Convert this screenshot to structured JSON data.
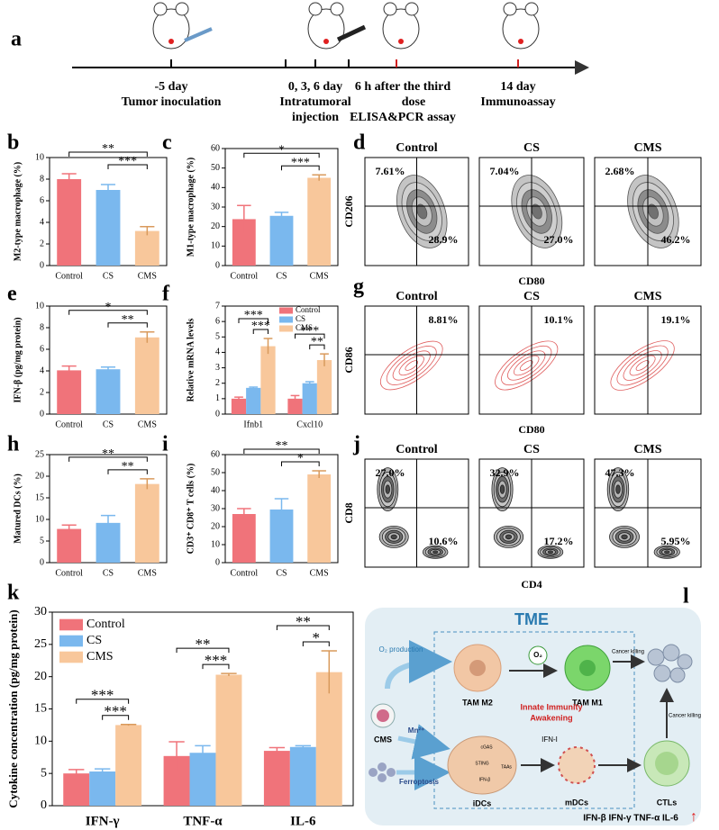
{
  "chart_data": [
    {
      "type": "bar",
      "panel": "b",
      "y_label": "M2-type macrophage (%)",
      "categories": [
        "Control",
        "CS",
        "CMS"
      ],
      "values": [
        8.0,
        7.0,
        3.2
      ],
      "errors": [
        0.5,
        0.5,
        0.4
      ],
      "colors": [
        "#f0737a",
        "#7ab8ee",
        "#f8c79b"
      ],
      "ylim": [
        0,
        10
      ],
      "yticks": [
        0,
        2,
        4,
        6,
        8,
        10
      ],
      "significance": [
        "**",
        "***"
      ]
    },
    {
      "type": "bar",
      "panel": "c",
      "y_label": "M1-type macrophage (%)",
      "categories": [
        "Control",
        "CS",
        "CMS"
      ],
      "values": [
        23.8,
        25.5,
        45
      ],
      "errors": [
        7,
        1.8,
        1.5
      ],
      "colors": [
        "#f0737a",
        "#7ab8ee",
        "#f8c79b"
      ],
      "ylim": [
        0,
        60
      ],
      "yticks": [
        0,
        10,
        20,
        30,
        40,
        50,
        60
      ],
      "significance": [
        "*",
        "***"
      ]
    },
    {
      "type": "bar",
      "panel": "e",
      "y_label": "IFN-β (pg/mg protein)",
      "categories": [
        "Control",
        "CS",
        "CMS"
      ],
      "values": [
        4.05,
        4.15,
        7.1
      ],
      "errors": [
        0.4,
        0.2,
        0.5
      ],
      "colors": [
        "#f0737a",
        "#7ab8ee",
        "#f8c79b"
      ],
      "ylim": [
        0,
        10
      ],
      "yticks": [
        0,
        2,
        4,
        6,
        8,
        10
      ],
      "significance": [
        "*",
        "**"
      ]
    },
    {
      "type": "grouped-bar",
      "panel": "f",
      "y_label": "Relative mRNA levels",
      "categories": [
        "Ifnb1",
        "Cxcl10"
      ],
      "series": [
        {
          "name": "Control",
          "color": "#f0737a",
          "values": [
            1.0,
            1.0
          ],
          "errors": [
            0.1,
            0.2
          ]
        },
        {
          "name": "CS",
          "color": "#7ab8ee",
          "values": [
            1.7,
            2.0
          ],
          "errors": [
            0.05,
            0.1
          ]
        },
        {
          "name": "CMS",
          "color": "#f8c79b",
          "values": [
            4.4,
            3.5
          ],
          "errors": [
            0.5,
            0.4
          ]
        }
      ],
      "ylim": [
        0,
        7
      ],
      "yticks": [
        0,
        1,
        2,
        3,
        4,
        5,
        6,
        7
      ],
      "legend": "upper right",
      "significance": [
        [
          "***",
          "***"
        ],
        [
          "***",
          "**"
        ]
      ]
    },
    {
      "type": "bar",
      "panel": "h",
      "y_label": "Matured DCs (%)",
      "categories": [
        "Control",
        "CS",
        "CMS"
      ],
      "values": [
        7.8,
        9.2,
        18.2
      ],
      "errors": [
        0.9,
        1.7,
        1.2
      ],
      "colors": [
        "#f0737a",
        "#7ab8ee",
        "#f8c79b"
      ],
      "ylim": [
        0,
        25
      ],
      "yticks": [
        0,
        5,
        10,
        15,
        20,
        25
      ],
      "significance": [
        "**",
        "**"
      ]
    },
    {
      "type": "bar",
      "panel": "i",
      "y_label": "CD3⁺ CD8⁺ T cells (%)",
      "categories": [
        "Control",
        "CS",
        "CMS"
      ],
      "values": [
        27,
        29.5,
        49
      ],
      "errors": [
        3,
        6,
        2
      ],
      "colors": [
        "#f0737a",
        "#7ab8ee",
        "#f8c79b"
      ],
      "ylim": [
        0,
        60
      ],
      "yticks": [
        0,
        10,
        20,
        30,
        40,
        50,
        60
      ],
      "significance": [
        "**",
        "*"
      ]
    },
    {
      "type": "grouped-bar",
      "panel": "k",
      "y_label": "Cytokine concentration (pg/mg protein)",
      "categories": [
        "IFN-γ",
        "TNF-α",
        "IL-6"
      ],
      "series": [
        {
          "name": "Control",
          "color": "#f0737a",
          "values": [
            5.0,
            7.7,
            8.5
          ],
          "errors": [
            0.6,
            2.2,
            0.5
          ]
        },
        {
          "name": "CS",
          "color": "#7ab8ee",
          "values": [
            5.3,
            8.2,
            9.1
          ],
          "errors": [
            0.4,
            1.1,
            0.2
          ]
        },
        {
          "name": "CMS",
          "color": "#f8c79b",
          "values": [
            12.5,
            20.3,
            20.7
          ],
          "errors": [
            0.1,
            0.2,
            3.3
          ]
        }
      ],
      "ylim": [
        0,
        30
      ],
      "yticks": [
        0,
        5,
        10,
        15,
        20,
        25,
        30
      ],
      "legend": "upper left",
      "significance": [
        [
          "***",
          "***"
        ],
        [
          "**",
          "***"
        ],
        [
          "**",
          "*"
        ]
      ]
    }
  ],
  "timeline": {
    "panel": "a",
    "events": [
      {
        "lines": [
          "-5 day",
          "Tumor inoculation"
        ]
      },
      {
        "lines": [
          "0, 3, 6 day",
          "Intratumoral",
          "injection"
        ]
      },
      {
        "lines": [
          "6 h after the third",
          "dose",
          "ELISA&PCR assay"
        ]
      },
      {
        "lines": [
          "14 day",
          "Immunoassay"
        ]
      }
    ]
  },
  "flow_cytometry": [
    {
      "panel": "d",
      "y_label": "CD206",
      "x_label": "CD80",
      "color": "#555555",
      "quadrants": [
        "upper-left",
        "lower-right"
      ],
      "plots": [
        {
          "title": "Control",
          "labels": [
            "7.61%",
            "28.9%"
          ]
        },
        {
          "title": "CS",
          "labels": [
            "7.04%",
            "27.0%"
          ]
        },
        {
          "title": "CMS",
          "labels": [
            "2.68%",
            "46.2%"
          ]
        }
      ]
    },
    {
      "panel": "g",
      "y_label": "CD86",
      "x_label": "CD80",
      "color": "#e06060",
      "quadrants": [
        "upper-right"
      ],
      "plots": [
        {
          "title": "Control",
          "labels": [
            "8.81%"
          ]
        },
        {
          "title": "CS",
          "labels": [
            "10.1%"
          ]
        },
        {
          "title": "CMS",
          "labels": [
            "19.1%"
          ]
        }
      ]
    },
    {
      "panel": "j",
      "y_label": "CD8",
      "x_label": "CD4",
      "color": "#222222",
      "quadrants": [
        "upper-left",
        "lower-right"
      ],
      "plots": [
        {
          "title": "Control",
          "labels": [
            "27.0%",
            "10.6%"
          ]
        },
        {
          "title": "CS",
          "labels": [
            "32.9%",
            "17.2%"
          ]
        },
        {
          "title": "CMS",
          "labels": [
            "47.3%",
            "5.95%"
          ]
        }
      ]
    }
  ],
  "schematic": {
    "panel": "l",
    "title": "TME",
    "o2_production": "O₂ production",
    "o2": "O₂",
    "tam_m2": "TAM M2",
    "tam_m1": "TAM M1",
    "cancer_killing": [
      "Cancer killing",
      "Cancer killing"
    ],
    "cms": "CMS",
    "mn": "Mn²⁺",
    "ferroptosis": "Ferroptosis",
    "awakening": [
      "Innate Immunity",
      "Awakening"
    ],
    "ifn": "IFN-I",
    "idcs": "iDCs",
    "mdcs": "mDCs",
    "ctls": "CTLs",
    "pathway": [
      "cGAS",
      "STING",
      "TAAs",
      "IFN-β"
    ],
    "footer": "IFN-β IFN-γ TNF-α IL-6",
    "arrow": "↑"
  }
}
